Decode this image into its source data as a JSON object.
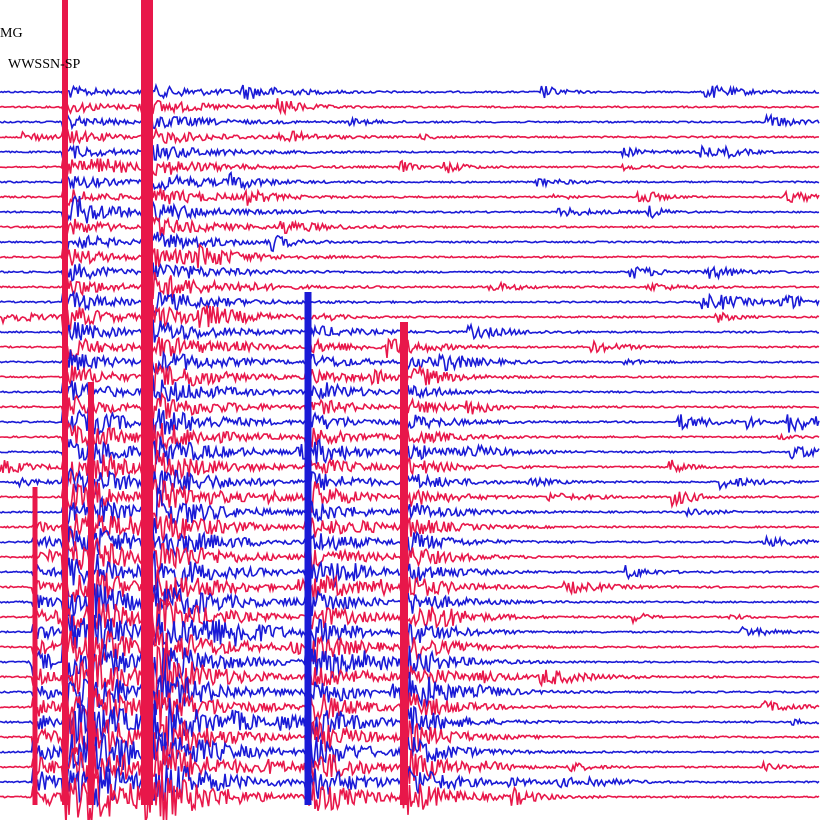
{
  "header": {
    "station": "MG",
    "network": "WWSSN-SP"
  }
}
